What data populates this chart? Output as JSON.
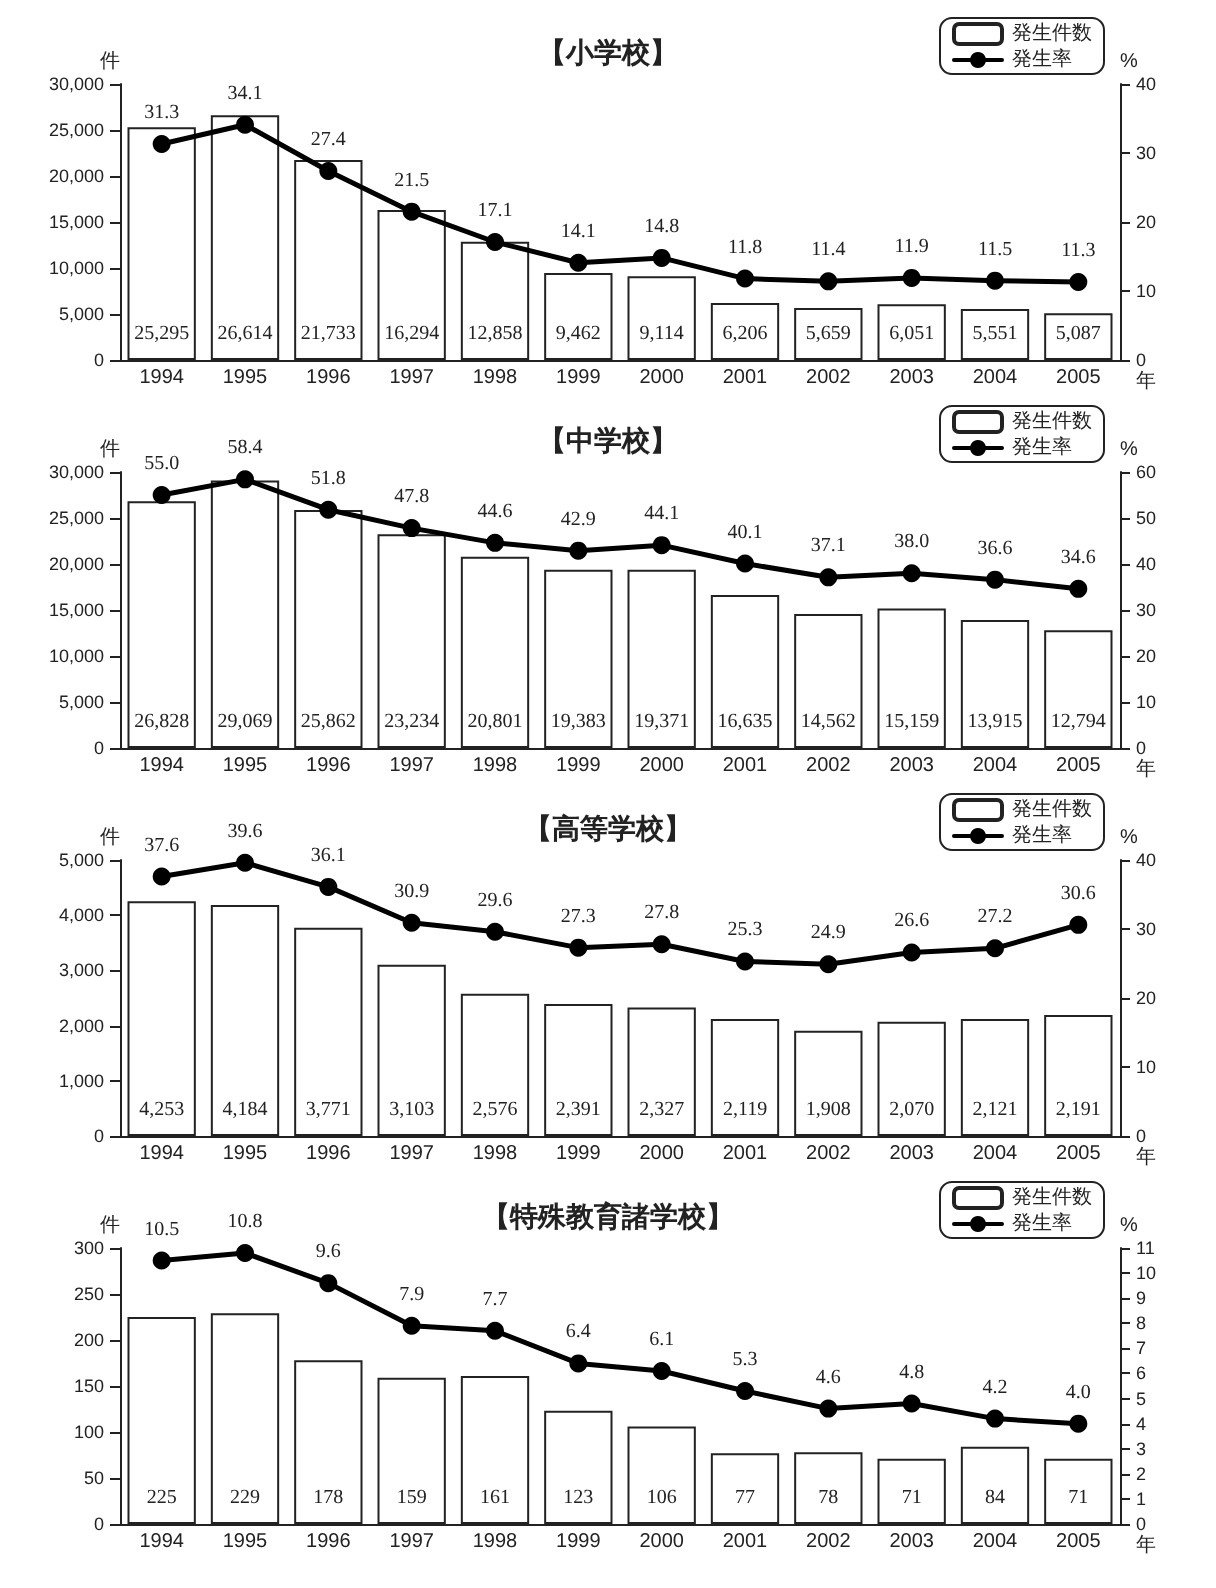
{
  "chart_data": [
    {
      "type": "bar",
      "title": "【小学校】",
      "xlabel": "年",
      "ylabel": "件",
      "y2label": "%",
      "categories": [
        "1994",
        "1995",
        "1996",
        "1997",
        "1998",
        "1999",
        "2000",
        "2001",
        "2002",
        "2003",
        "2004",
        "2005"
      ],
      "series": [
        {
          "name": "発生件数",
          "color": "#ffffff",
          "values": [
            25295,
            26614,
            21733,
            16294,
            12858,
            9462,
            9114,
            6206,
            5659,
            6051,
            5551,
            5087
          ],
          "value_labels": [
            "25,295",
            "26,614",
            "21,733",
            "16,294",
            "12,858",
            "9,462",
            "9,114",
            "6,206",
            "5,659",
            "6,051",
            "5,551",
            "5,087"
          ]
        },
        {
          "name": "発生率",
          "type": "line",
          "axis": "y2",
          "color": "#000000",
          "values": [
            31.3,
            34.1,
            27.4,
            21.5,
            17.1,
            14.1,
            14.8,
            11.8,
            11.4,
            11.9,
            11.5,
            11.3
          ],
          "value_labels": [
            "31.3",
            "34.1",
            "27.4",
            "21.5",
            "17.1",
            "14.1",
            "14.8",
            "11.8",
            "11.4",
            "11.9",
            "11.5",
            "11.3"
          ]
        }
      ],
      "ylim": [
        0,
        30000
      ],
      "yticks": [
        0,
        {
          "value": 5000,
          "label": "5,000"
        },
        {
          "value": 10000,
          "label": "10,000"
        },
        {
          "value": 15000,
          "label": "15,000"
        },
        {
          "value": 20000,
          "label": "20,000"
        },
        {
          "value": 25000,
          "label": "25,000"
        },
        {
          "value": 30000,
          "label": "30,000"
        }
      ],
      "y2lim": [
        0,
        40
      ],
      "y2ticks": [
        0,
        10,
        20,
        30,
        40
      ],
      "legend": "top right",
      "marker": "circle",
      "line_style": "solid",
      "grid": false
    },
    {
      "type": "bar",
      "title": "【中学校】",
      "xlabel": "年",
      "ylabel": "件",
      "y2label": "%",
      "categories": [
        "1994",
        "1995",
        "1996",
        "1997",
        "1998",
        "1999",
        "2000",
        "2001",
        "2002",
        "2003",
        "2004",
        "2005"
      ],
      "series": [
        {
          "name": "発生件数",
          "color": "#ffffff",
          "values": [
            26828,
            29069,
            25862,
            23234,
            20801,
            19383,
            19371,
            16635,
            14562,
            15159,
            13915,
            12794
          ],
          "value_labels": [
            "26,828",
            "29,069",
            "25,862",
            "23,234",
            "20,801",
            "19,383",
            "19,371",
            "16,635",
            "14,562",
            "15,159",
            "13,915",
            "12,794"
          ]
        },
        {
          "name": "発生率",
          "type": "line",
          "axis": "y2",
          "color": "#000000",
          "values": [
            55.0,
            58.4,
            51.8,
            47.8,
            44.6,
            42.9,
            44.1,
            40.1,
            37.1,
            38.0,
            36.6,
            34.6
          ],
          "value_labels": [
            "55.0",
            "58.4",
            "51.8",
            "47.8",
            "44.6",
            "42.9",
            "44.1",
            "40.1",
            "37.1",
            "38.0",
            "36.6",
            "34.6"
          ]
        }
      ],
      "ylim": [
        0,
        30000
      ],
      "yticks": [
        0,
        {
          "value": 5000,
          "label": "5,000"
        },
        {
          "value": 10000,
          "label": "10,000"
        },
        {
          "value": 15000,
          "label": "15,000"
        },
        {
          "value": 20000,
          "label": "20,000"
        },
        {
          "value": 25000,
          "label": "25,000"
        },
        {
          "value": 30000,
          "label": "30,000"
        }
      ],
      "y2lim": [
        0,
        60
      ],
      "y2ticks": [
        0,
        10,
        20,
        30,
        40,
        50,
        60
      ],
      "legend": "top right",
      "marker": "circle",
      "line_style": "solid",
      "grid": false
    },
    {
      "type": "bar",
      "title": "【高等学校】",
      "xlabel": "年",
      "ylabel": "件",
      "y2label": "%",
      "categories": [
        "1994",
        "1995",
        "1996",
        "1997",
        "1998",
        "1999",
        "2000",
        "2001",
        "2002",
        "2003",
        "2004",
        "2005"
      ],
      "series": [
        {
          "name": "発生件数",
          "color": "#ffffff",
          "values": [
            4253,
            4184,
            3771,
            3103,
            2576,
            2391,
            2327,
            2119,
            1908,
            2070,
            2121,
            2191
          ],
          "value_labels": [
            "4,253",
            "4,184",
            "3,771",
            "3,103",
            "2,576",
            "2,391",
            "2,327",
            "2,119",
            "1,908",
            "2,070",
            "2,121",
            "2,191"
          ]
        },
        {
          "name": "発生率",
          "type": "line",
          "axis": "y2",
          "color": "#000000",
          "values": [
            37.6,
            39.6,
            36.1,
            30.9,
            29.6,
            27.3,
            27.8,
            25.3,
            24.9,
            26.6,
            27.2,
            30.6
          ],
          "value_labels": [
            "37.6",
            "39.6",
            "36.1",
            "30.9",
            "29.6",
            "27.3",
            "27.8",
            "25.3",
            "24.9",
            "26.6",
            "27.2",
            "30.6"
          ]
        }
      ],
      "ylim": [
        0,
        5000
      ],
      "yticks": [
        0,
        {
          "value": 1000,
          "label": "1,000"
        },
        {
          "value": 2000,
          "label": "2,000"
        },
        {
          "value": 3000,
          "label": "3,000"
        },
        {
          "value": 4000,
          "label": "4,000"
        },
        {
          "value": 5000,
          "label": "5,000"
        }
      ],
      "y2lim": [
        0,
        40
      ],
      "y2ticks": [
        0,
        10,
        20,
        30,
        40
      ],
      "legend": "top right",
      "marker": "circle",
      "line_style": "solid",
      "grid": false
    },
    {
      "type": "bar",
      "title": "【特殊教育諸学校】",
      "xlabel": "年",
      "ylabel": "件",
      "y2label": "%",
      "categories": [
        "1994",
        "1995",
        "1996",
        "1997",
        "1998",
        "1999",
        "2000",
        "2001",
        "2002",
        "2003",
        "2004",
        "2005"
      ],
      "series": [
        {
          "name": "発生件数",
          "color": "#ffffff",
          "values": [
            225,
            229,
            178,
            159,
            161,
            123,
            106,
            77,
            78,
            71,
            84,
            71
          ],
          "value_labels": [
            "225",
            "229",
            "178",
            "159",
            "161",
            "123",
            "106",
            "77",
            "78",
            "71",
            "84",
            "71"
          ]
        },
        {
          "name": "発生率",
          "type": "line",
          "axis": "y2",
          "color": "#000000",
          "values": [
            10.5,
            10.8,
            9.6,
            7.9,
            7.7,
            6.4,
            6.1,
            5.3,
            4.6,
            4.8,
            4.2,
            4.0
          ],
          "value_labels": [
            "10.5",
            "10.8",
            "9.6",
            "7.9",
            "7.7",
            "6.4",
            "6.1",
            "5.3",
            "4.6",
            "4.8",
            "4.2",
            "4.0"
          ]
        }
      ],
      "ylim": [
        0,
        300
      ],
      "yticks": [
        0,
        50,
        100,
        150,
        200,
        250,
        300
      ],
      "y2lim": [
        0,
        11
      ],
      "y2ticks": [
        0,
        1,
        2,
        3,
        4,
        5,
        6,
        7,
        8,
        9,
        10,
        11
      ],
      "legend": "top right",
      "marker": "circle",
      "line_style": "solid",
      "grid": false
    }
  ]
}
